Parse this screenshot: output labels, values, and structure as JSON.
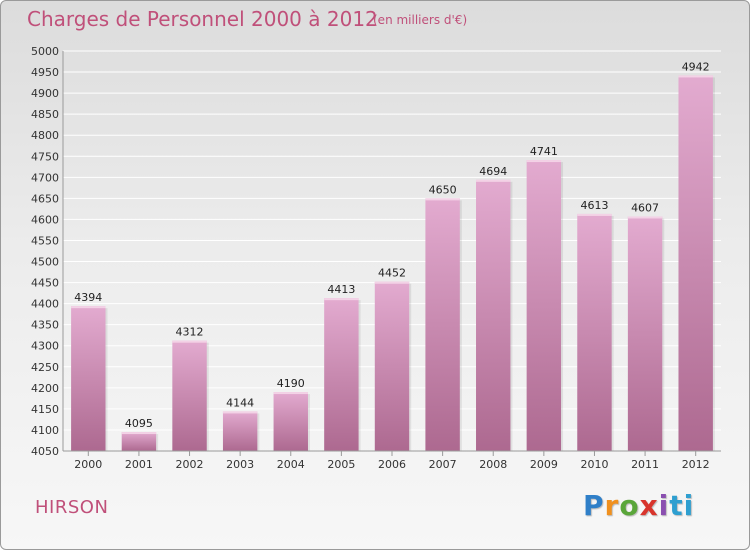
{
  "title": "Charges de Personnel 2000 à 2012",
  "subtitle": "(en milliers d'€)",
  "location": "HIRSON",
  "logo": {
    "l1": "P",
    "l2": "r",
    "l3": "o",
    "l4": "x",
    "l5": "i",
    "l6": "ti"
  },
  "colors": {
    "title": "#c0507a",
    "bar_light": "#e0a6cc",
    "bar_dark": "#b06890",
    "grid": "#ffffff",
    "axis": "#999999",
    "text": "#222222"
  },
  "chart_data": {
    "type": "bar",
    "categories": [
      "2000",
      "2001",
      "2002",
      "2003",
      "2004",
      "2005",
      "2006",
      "2007",
      "2008",
      "2009",
      "2010",
      "2011",
      "2012"
    ],
    "values": [
      4394,
      4095,
      4312,
      4144,
      4190,
      4413,
      4452,
      4650,
      4694,
      4741,
      4613,
      4607,
      4942
    ],
    "ylim": [
      4050,
      5000
    ],
    "ytick_step": 50,
    "grid": true,
    "data_labels": true
  }
}
